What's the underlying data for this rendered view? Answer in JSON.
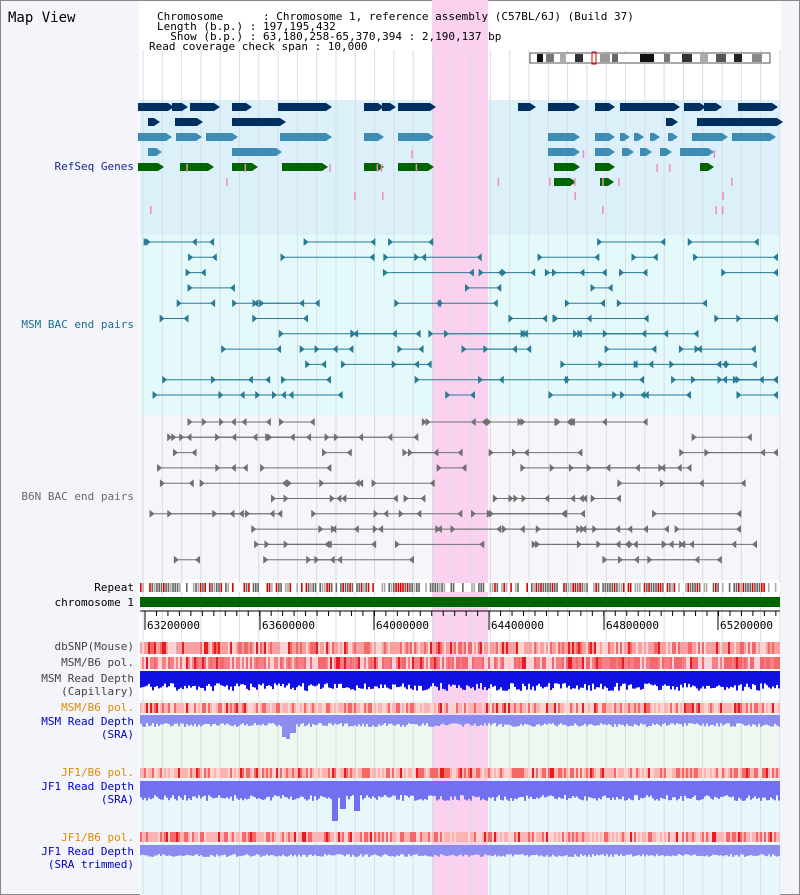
{
  "title": "Map View",
  "info": {
    "chromosome": "Chromosome      : Chromosome 1, reference assembly (C57BL/6J) (Build 37)",
    "length": "Length (b.p.) : 197,195,432",
    "show": "  Show (b.p.) : 63,180,258-65,370,394 : 2,190,137 bp",
    "coverage": "Read coverage check span : 10,000"
  },
  "tracks": {
    "refseq": "RefSeq Genes",
    "msm_bac": "MSM BAC end pairs",
    "b6n_bac": "B6N BAC end pairs",
    "repeat": "Repeat",
    "chromosome": "chromosome 1",
    "dbsnp": "dbSNP(Mouse)",
    "msm_b6_pol": "MSM/B6 pol.",
    "msm_depth_cap_1": "MSM Read Depth",
    "msm_depth_cap_2": "(Capillary)",
    "msm_b6_pol2": "MSM/B6 pol.",
    "msm_depth_sra_1": "MSM Read Depth",
    "msm_depth_sra_2": "(SRA)",
    "jf1_b6_pol": "JF1/B6 pol.",
    "jf1_depth_sra_1": "JF1 Read Depth",
    "jf1_depth_sra_2": "(SRA)",
    "jf1_b6_pol2": "JF1/B6 pol.",
    "jf1_depth_trim_1": "JF1 Read Depth",
    "jf1_depth_trim_2": "(SRA trimmed)"
  },
  "ruler": {
    "ticks": [
      "63200000",
      "63600000",
      "64000000",
      "64400000",
      "64800000",
      "65200000"
    ]
  },
  "colors": {
    "refseq_bg": "#dcf0fa",
    "msm_bg": "#e4fafa",
    "b6n_bg": "#f6f6fa",
    "highlight": "#fad2f0",
    "chromosome_bar": "#006400",
    "gene_dark": "#00305f",
    "gene_mid": "#3c8cb4",
    "gene_green": "#006400",
    "msm_line": "#2a7a96",
    "b6n_line": "#707070",
    "label_navy": "#1a2a8a",
    "label_teal": "#1a7090",
    "label_gray": "#6a6a6a",
    "label_orange": "#e08a00",
    "label_blue": "#0000cc"
  }
}
